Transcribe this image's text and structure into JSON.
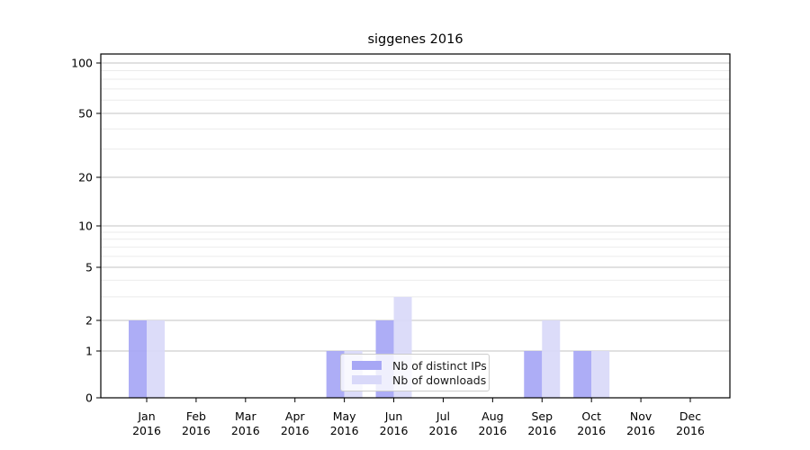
{
  "chart_data": {
    "type": "bar",
    "title": "siggenes 2016",
    "categories": [
      "Jan",
      "Feb",
      "Mar",
      "Apr",
      "May",
      "Jun",
      "Jul",
      "Aug",
      "Sep",
      "Oct",
      "Nov",
      "Dec"
    ],
    "category_sublabel": "2016",
    "series": [
      {
        "name": "Nb of distinct IPs",
        "color": "#a7a7f5",
        "values": [
          2,
          0,
          0,
          0,
          1,
          2,
          0,
          0,
          1,
          1,
          0,
          0
        ]
      },
      {
        "name": "Nb of downloads",
        "color": "#d9d9f9",
        "values": [
          2,
          0,
          0,
          0,
          1,
          3,
          0,
          0,
          2,
          1,
          0,
          0
        ]
      }
    ],
    "y_axis": {
      "ticks": [
        0,
        1,
        2,
        5,
        10,
        20,
        50,
        100
      ],
      "minor_ticks": [
        3,
        4,
        6,
        7,
        8,
        9,
        30,
        40,
        60,
        70,
        80,
        90
      ],
      "scale": "log-like",
      "range": [
        0,
        100
      ]
    },
    "legend": {
      "position": "lower-center"
    },
    "grid": {
      "major_color": "#c3c3c3",
      "minor_color": "#ebebeb"
    },
    "axis_color": "#000000"
  }
}
